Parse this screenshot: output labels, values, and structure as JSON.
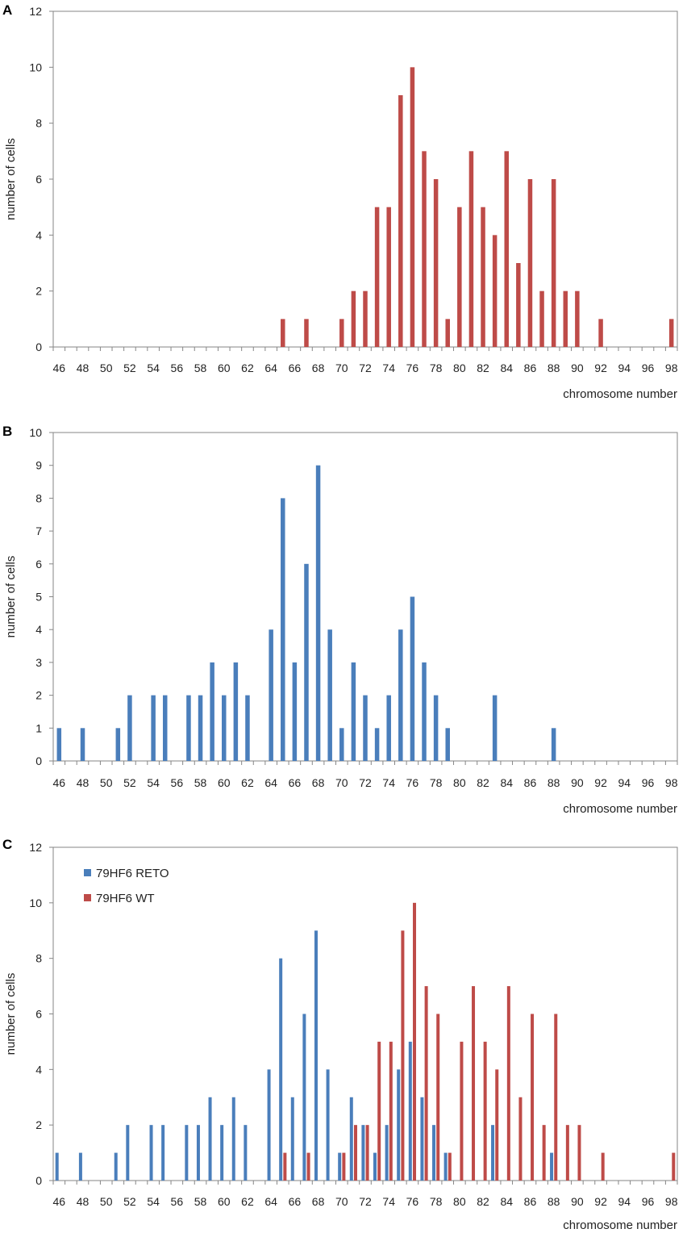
{
  "figure": {
    "colors": {
      "reto": "#4a7ebb",
      "wt": "#be4b48",
      "axis": "#868686"
    }
  },
  "chart_data": [
    {
      "type": "bar",
      "panel": "A",
      "title": "",
      "xlabel": "chromosome number",
      "ylabel": "number of cells",
      "ylim": [
        0,
        12
      ],
      "yticks": [
        0,
        2,
        4,
        6,
        8,
        10,
        12
      ],
      "xlim": [
        46,
        98
      ],
      "xticks": [
        46,
        48,
        50,
        52,
        54,
        56,
        58,
        60,
        62,
        64,
        66,
        68,
        70,
        72,
        74,
        76,
        78,
        80,
        82,
        84,
        86,
        88,
        90,
        92,
        94,
        96,
        98
      ],
      "grid": false,
      "series": [
        {
          "name": "79HF6 WT",
          "color": "#be4b48",
          "x": [
            65,
            67,
            70,
            71,
            72,
            73,
            74,
            75,
            76,
            77,
            78,
            79,
            80,
            81,
            82,
            83,
            84,
            85,
            86,
            87,
            88,
            89,
            90,
            92,
            98
          ],
          "values": [
            1,
            1,
            1,
            2,
            2,
            5,
            5,
            9,
            10,
            7,
            6,
            1,
            5,
            7,
            5,
            4,
            7,
            3,
            6,
            2,
            6,
            2,
            2,
            1,
            1
          ]
        }
      ]
    },
    {
      "type": "bar",
      "panel": "B",
      "title": "",
      "xlabel": "chromosome number",
      "ylabel": "number of cells",
      "ylim": [
        0,
        10
      ],
      "yticks": [
        0,
        1,
        2,
        3,
        4,
        5,
        6,
        7,
        8,
        9,
        10
      ],
      "xlim": [
        46,
        98
      ],
      "xticks": [
        46,
        48,
        50,
        52,
        54,
        56,
        58,
        60,
        62,
        64,
        66,
        68,
        70,
        72,
        74,
        76,
        78,
        80,
        82,
        84,
        86,
        88,
        90,
        92,
        94,
        96,
        98
      ],
      "grid": false,
      "series": [
        {
          "name": "79HF6 RETO",
          "color": "#4a7ebb",
          "x": [
            46,
            48,
            51,
            52,
            54,
            55,
            57,
            58,
            59,
            60,
            61,
            62,
            64,
            65,
            66,
            67,
            68,
            69,
            70,
            71,
            72,
            73,
            74,
            75,
            76,
            77,
            78,
            79,
            83,
            88
          ],
          "values": [
            1,
            1,
            1,
            2,
            2,
            2,
            2,
            2,
            3,
            2,
            3,
            2,
            4,
            8,
            3,
            6,
            9,
            4,
            1,
            3,
            2,
            1,
            2,
            4,
            5,
            3,
            2,
            1,
            2,
            1
          ]
        }
      ]
    },
    {
      "type": "bar",
      "panel": "C",
      "title": "",
      "xlabel": "chromosome number",
      "ylabel": "number of cells",
      "ylim": [
        0,
        12
      ],
      "yticks": [
        0,
        2,
        4,
        6,
        8,
        10,
        12
      ],
      "xlim": [
        46,
        98
      ],
      "xticks": [
        46,
        48,
        50,
        52,
        54,
        56,
        58,
        60,
        62,
        64,
        66,
        68,
        70,
        72,
        74,
        76,
        78,
        80,
        82,
        84,
        86,
        88,
        90,
        92,
        94,
        96,
        98
      ],
      "grid": false,
      "legend": "top-left",
      "series": [
        {
          "name": "79HF6 RETO",
          "color": "#4a7ebb",
          "x": [
            46,
            48,
            51,
            52,
            54,
            55,
            57,
            58,
            59,
            60,
            61,
            62,
            64,
            65,
            66,
            67,
            68,
            69,
            70,
            71,
            72,
            73,
            74,
            75,
            76,
            77,
            78,
            79,
            83,
            88
          ],
          "values": [
            1,
            1,
            1,
            2,
            2,
            2,
            2,
            2,
            3,
            2,
            3,
            2,
            4,
            8,
            3,
            6,
            9,
            4,
            1,
            3,
            2,
            1,
            2,
            4,
            5,
            3,
            2,
            1,
            2,
            1
          ]
        },
        {
          "name": "79HF6 WT",
          "color": "#be4b48",
          "x": [
            65,
            67,
            70,
            71,
            72,
            73,
            74,
            75,
            76,
            77,
            78,
            79,
            80,
            81,
            82,
            83,
            84,
            85,
            86,
            87,
            88,
            89,
            90,
            92,
            98
          ],
          "values": [
            1,
            1,
            1,
            2,
            2,
            5,
            5,
            9,
            10,
            7,
            6,
            1,
            5,
            7,
            5,
            4,
            7,
            3,
            6,
            2,
            6,
            2,
            2,
            1,
            1
          ]
        }
      ]
    }
  ]
}
